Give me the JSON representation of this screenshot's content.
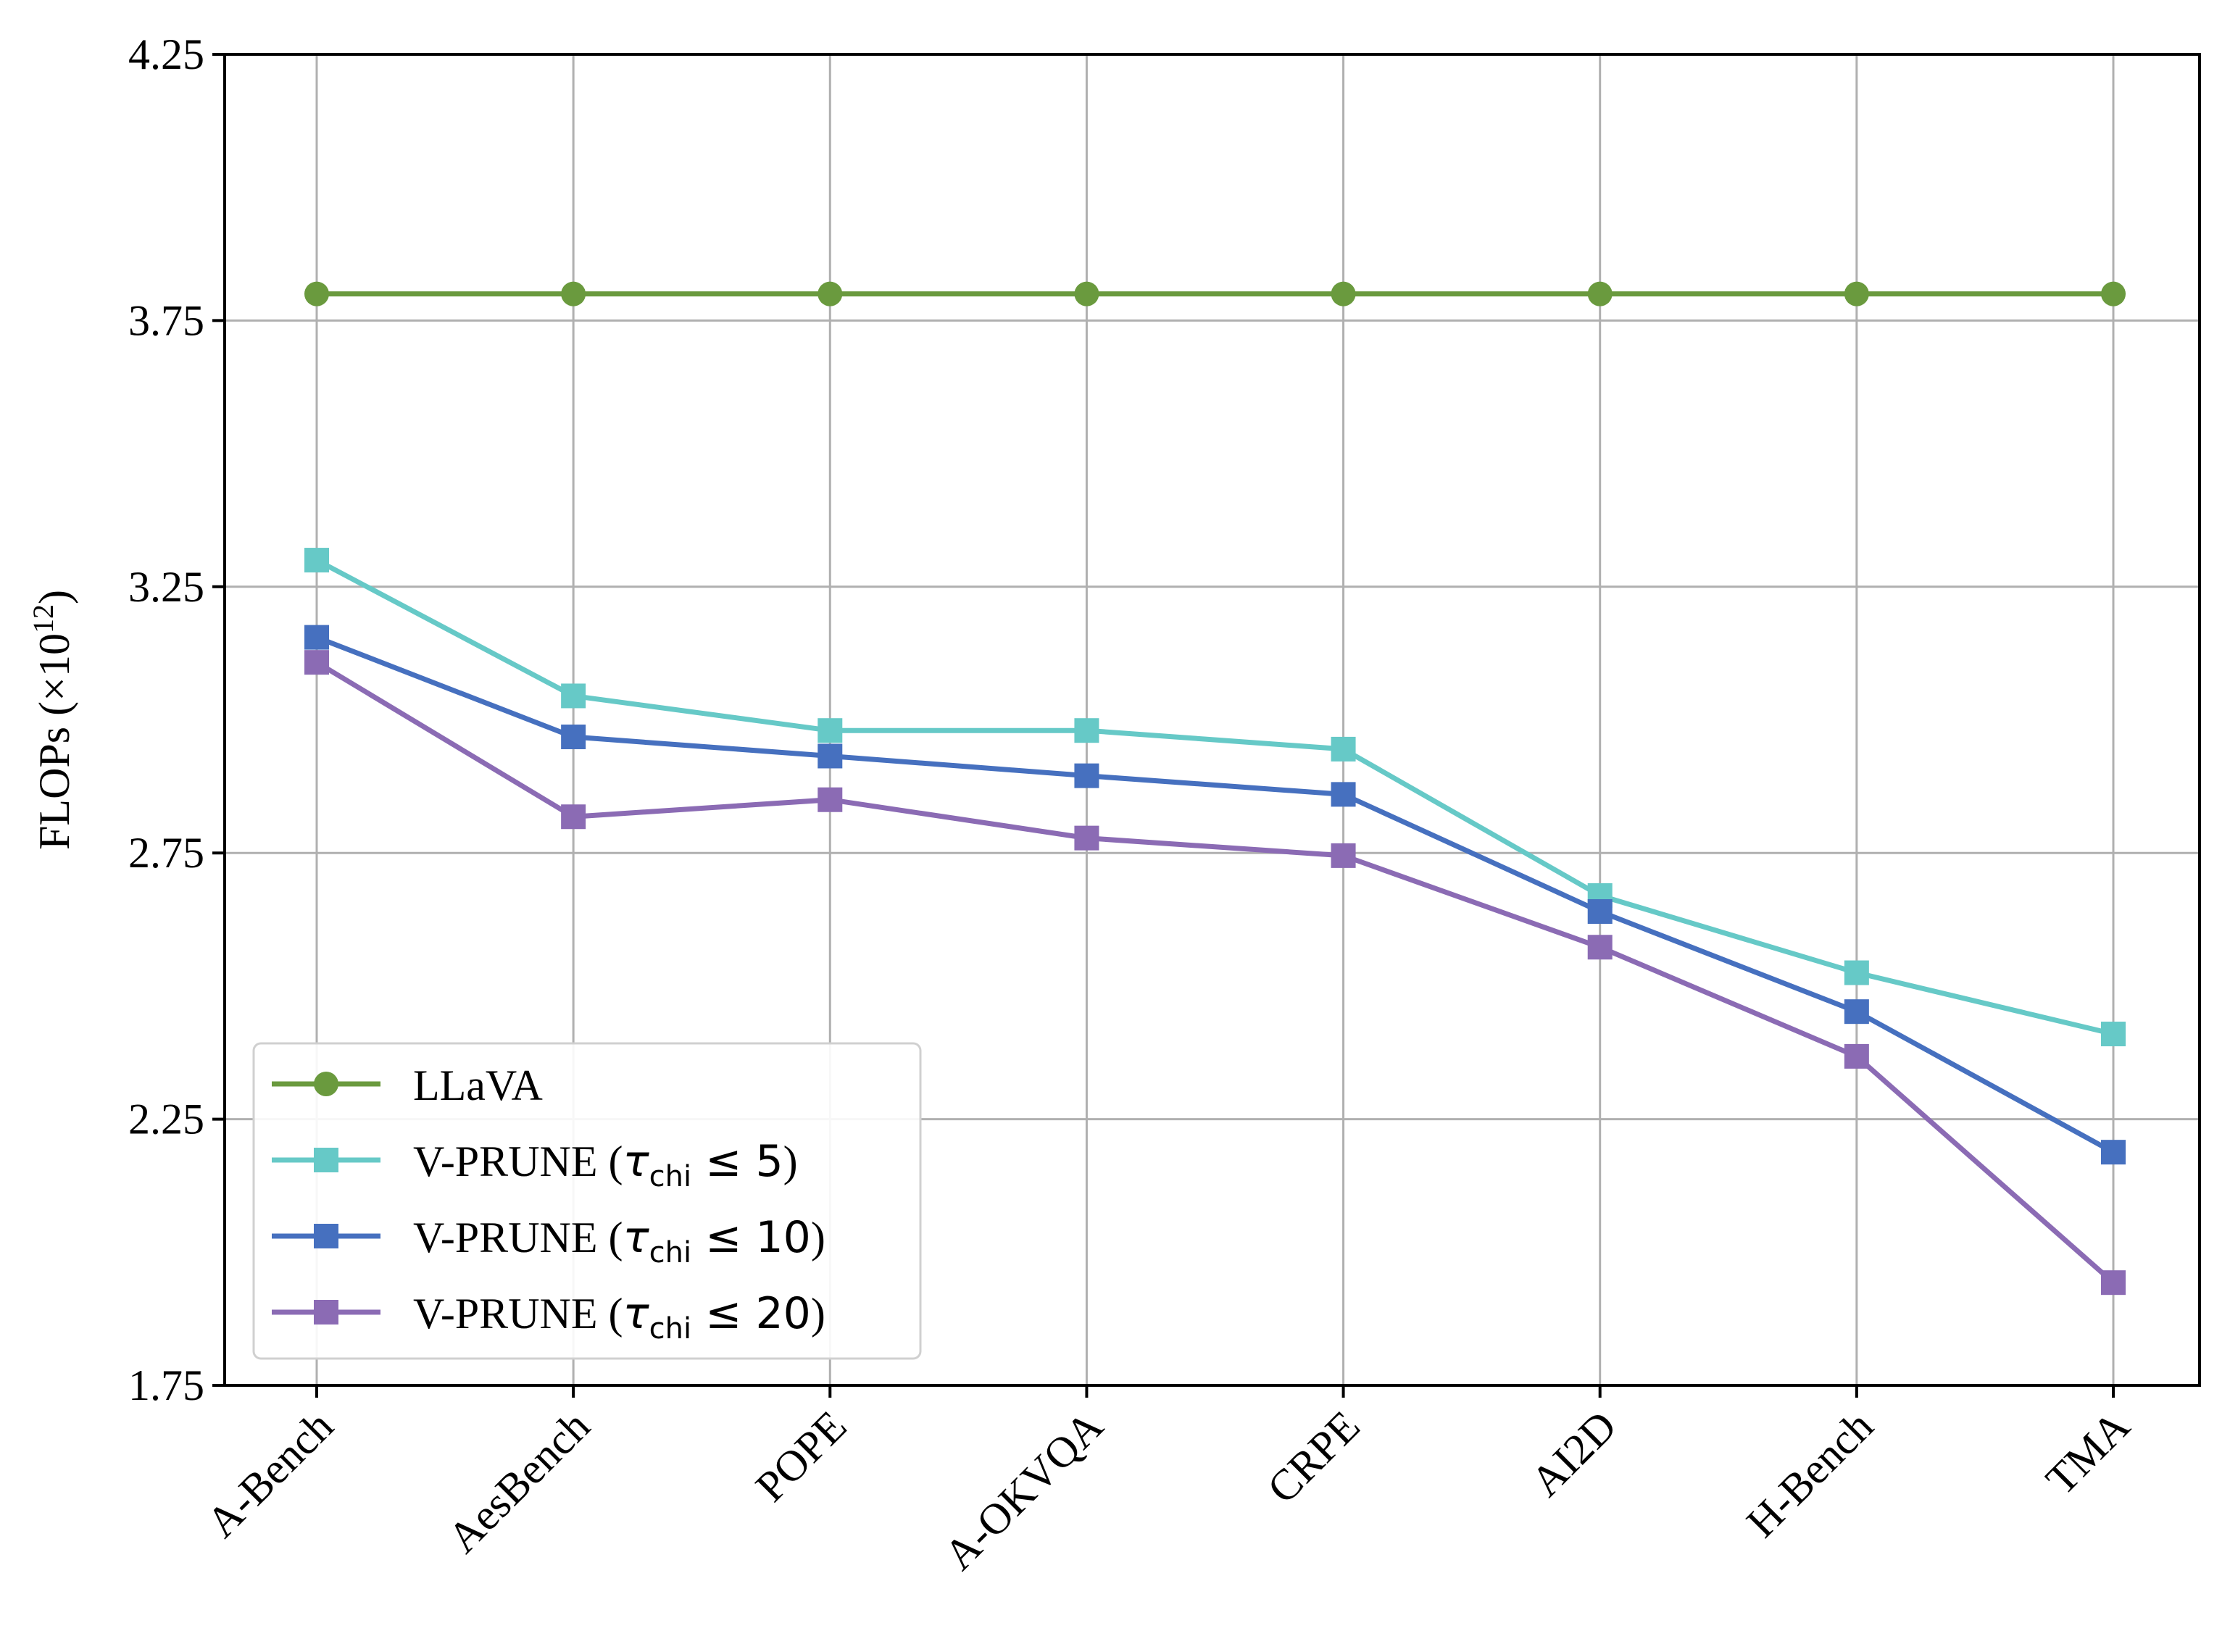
{
  "chart_data": {
    "type": "line",
    "title": "",
    "xlabel": "",
    "ylabel": "FLOPs (×10",
    "ylabel_exponent": "12",
    "ylabel_close": ")",
    "ylim": [
      1.75,
      4.25
    ],
    "yticks": [
      1.75,
      2.25,
      2.75,
      3.25,
      3.75,
      4.25
    ],
    "ytick_labels": [
      "1.75",
      "2.25",
      "2.75",
      "3.25",
      "3.75",
      "4.25"
    ],
    "grid": true,
    "legend_position": "bottom-left",
    "categories": [
      "A-Bench",
      "AesBench",
      "POPE",
      "A-OKVQA",
      "CRPE",
      "AI2D",
      "H-Bench",
      "TMA"
    ],
    "series": [
      {
        "name": "LLaVA",
        "label_prefix": "LLaVA",
        "label_math": "",
        "label_suffix": "",
        "color": "#6a9a3e",
        "marker": "circle",
        "values": [
          3.8,
          3.8,
          3.8,
          3.8,
          3.8,
          3.8,
          3.8,
          3.8
        ]
      },
      {
        "name": "V-PRUNE (τchi ≤ 5)",
        "label_prefix": "V-PRUNE (",
        "label_math": "τ",
        "label_sub": "chi",
        "label_rel": " ≤ 5",
        "label_suffix": ")",
        "color": "#66c9c7",
        "marker": "square",
        "values": [
          3.3,
          3.045,
          2.98,
          2.98,
          2.945,
          2.67,
          2.525,
          2.41
        ]
      },
      {
        "name": "V-PRUNE (τchi ≤ 10)",
        "label_prefix": "V-PRUNE (",
        "label_math": "τ",
        "label_sub": "chi",
        "label_rel": " ≤ 10",
        "label_suffix": ")",
        "color": "#4670bf",
        "marker": "square",
        "values": [
          3.155,
          2.968,
          2.932,
          2.895,
          2.86,
          2.64,
          2.452,
          2.188
        ]
      },
      {
        "name": "V-PRUNE (τchi ≤ 20)",
        "label_prefix": "V-PRUNE (",
        "label_math": "τ",
        "label_sub": "chi",
        "label_rel": " ≤ 20",
        "label_suffix": ")",
        "color": "#8b6bb4",
        "marker": "square",
        "values": [
          3.108,
          2.818,
          2.85,
          2.778,
          2.745,
          2.573,
          2.368,
          1.943
        ]
      }
    ]
  }
}
